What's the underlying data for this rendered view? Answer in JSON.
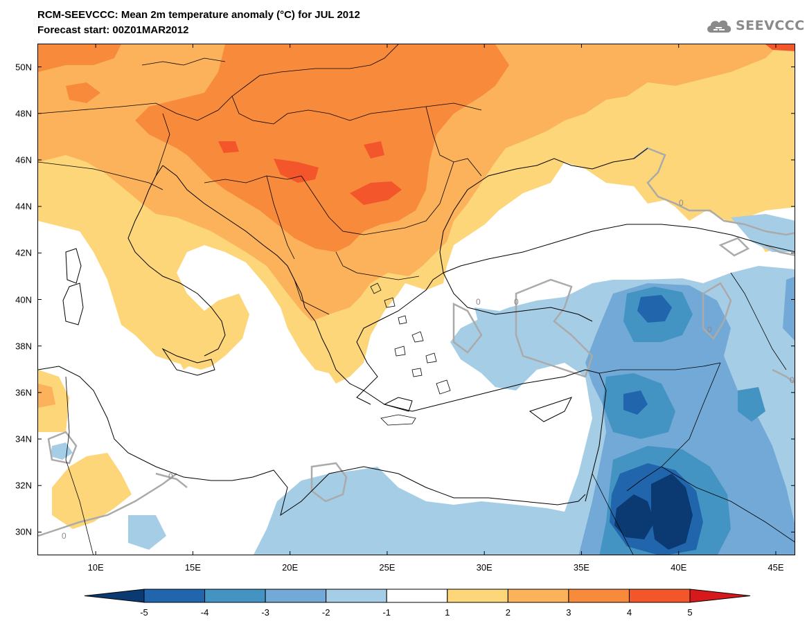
{
  "header": {
    "title_line1": "RCM-SEEVCCC: Mean 2m temperature anomaly (°C) for JUL 2012",
    "title_line2": "Forecast start: 00Z01MAR2012",
    "logo_text": "SEEVCCC"
  },
  "map": {
    "projection": "lat-lon",
    "lon_range": [
      7,
      46
    ],
    "lat_range": [
      29,
      51
    ],
    "lat_ticks": [
      {
        "value": 50,
        "label": "50N"
      },
      {
        "value": 48,
        "label": "48N"
      },
      {
        "value": 46,
        "label": "46N"
      },
      {
        "value": 44,
        "label": "44N"
      },
      {
        "value": 42,
        "label": "42N"
      },
      {
        "value": 40,
        "label": "40N"
      },
      {
        "value": 38,
        "label": "38N"
      },
      {
        "value": 36,
        "label": "36N"
      },
      {
        "value": 34,
        "label": "34N"
      },
      {
        "value": 32,
        "label": "32N"
      },
      {
        "value": 30,
        "label": "30N"
      }
    ],
    "lon_ticks": [
      {
        "value": 10,
        "label": "10E"
      },
      {
        "value": 15,
        "label": "15E"
      },
      {
        "value": 20,
        "label": "20E"
      },
      {
        "value": 25,
        "label": "25E"
      },
      {
        "value": 30,
        "label": "30E"
      },
      {
        "value": 35,
        "label": "35E"
      },
      {
        "value": 40,
        "label": "40E"
      },
      {
        "value": 45,
        "label": "45E"
      }
    ],
    "zero_contour_labels": [
      "0",
      "0",
      "0",
      "0",
      "0",
      "0",
      "0"
    ]
  },
  "colorbar": {
    "labels": [
      "-5",
      "-4",
      "-3",
      "-2",
      "-1",
      "1",
      "2",
      "3",
      "4",
      "5"
    ],
    "colors": [
      "#0b3a73",
      "#2166ac",
      "#4393c3",
      "#72a9d6",
      "#a6cde6",
      "#ffffff",
      "#fdd67a",
      "#fbb25a",
      "#f88a3b",
      "#f4562b",
      "#d7191c"
    ]
  }
}
